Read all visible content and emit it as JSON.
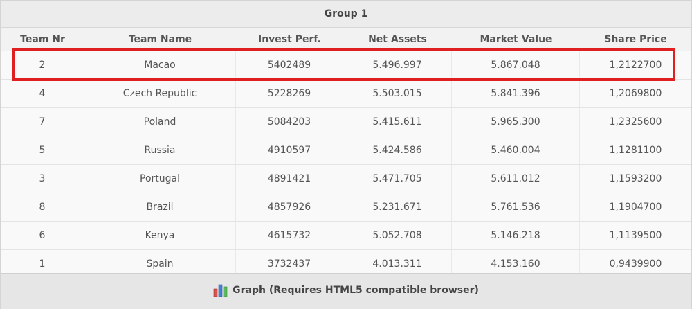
{
  "table": {
    "group_title": "Group 1",
    "columns": [
      "Team Nr",
      "Team Name",
      "Invest Perf.",
      "Net Assets",
      "Market Value",
      "Share Price"
    ],
    "rows": [
      [
        "2",
        "Macao",
        "5402489",
        "5.496.997",
        "5.867.048",
        "1,2122700"
      ],
      [
        "4",
        "Czech Republic",
        "5228269",
        "5.503.015",
        "5.841.396",
        "1,2069800"
      ],
      [
        "7",
        "Poland",
        "5084203",
        "5.415.611",
        "5.965.300",
        "1,2325600"
      ],
      [
        "5",
        "Russia",
        "4910597",
        "5.424.586",
        "5.460.004",
        "1,1281100"
      ],
      [
        "3",
        "Portugal",
        "4891421",
        "5.471.705",
        "5.611.012",
        "1,1593200"
      ],
      [
        "8",
        "Brazil",
        "4857926",
        "5.231.671",
        "5.761.536",
        "1,1904700"
      ],
      [
        "6",
        "Kenya",
        "4615732",
        "5.052.708",
        "5.146.218",
        "1,1139500"
      ],
      [
        "1",
        "Spain",
        "3732437",
        "4.013.311",
        "4.153.160",
        "0,9439900"
      ]
    ]
  },
  "footer": {
    "graph_label": "Graph (Requires HTML5 compatible browser)",
    "graph_icon": "bar-chart-icon"
  },
  "colors": {
    "highlight": "#e02020",
    "header_bg": "#ececec",
    "footer_bg": "#e6e6e6"
  }
}
